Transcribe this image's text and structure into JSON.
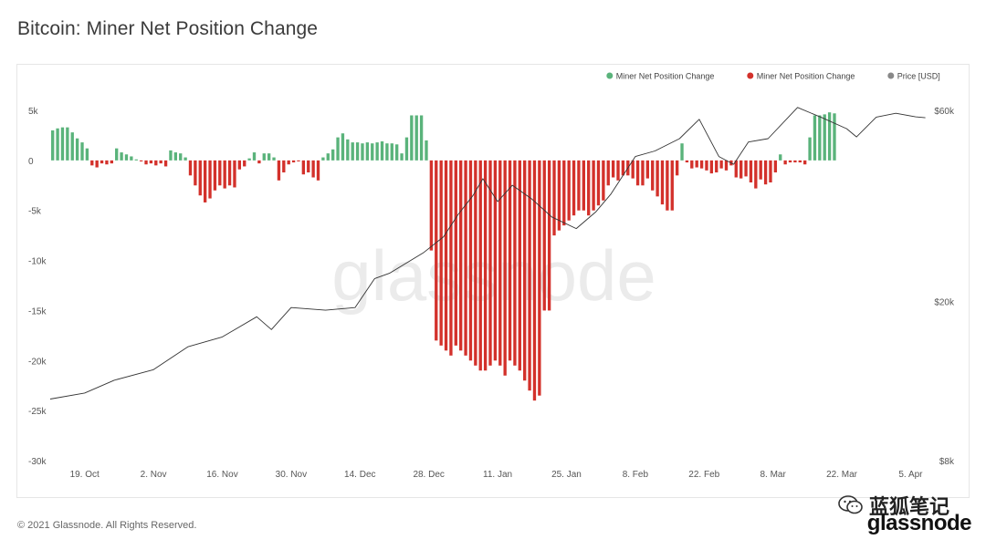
{
  "header": {
    "title": "Bitcoin: Miner Net Position Change"
  },
  "footer": {
    "copyright": "© 2021 Glassnode. All Rights Reserved."
  },
  "watermark": {
    "text": "glassnode"
  },
  "brand": {
    "logo_text": "glassnode",
    "wechat_text": "蓝狐笔记"
  },
  "colors": {
    "positive": "#5ab37b",
    "negative": "#d3312b",
    "price": "#333333",
    "watermark": "#ebebeb"
  },
  "chart_data": {
    "type": "bar",
    "legend": {
      "placement": "top-right",
      "items": [
        {
          "label": "Miner Net Position Change",
          "color": "#5ab37b"
        },
        {
          "label": "Miner Net Position Change",
          "color": "#d3312b"
        },
        {
          "label": "Price [USD]",
          "color": "#888888"
        }
      ]
    },
    "x_ticks": [
      "19. Oct",
      "2. Nov",
      "16. Nov",
      "30. Nov",
      "14. Dec",
      "28. Dec",
      "11. Jan",
      "25. Jan",
      "8. Feb",
      "22. Feb",
      "8. Mar",
      "22. Mar",
      "5. Apr"
    ],
    "y_left": {
      "ticks": [
        "5k",
        "0",
        "-5k",
        "-10k",
        "-15k",
        "-20k",
        "-25k",
        "-30k"
      ],
      "ylim": [
        -30000,
        5000
      ]
    },
    "y_right": {
      "ticks": [
        "$60k",
        "$20k",
        "$8k"
      ],
      "scale": "log",
      "ylim": [
        8000,
        60000
      ]
    },
    "grid": false,
    "x_range": [
      "2020-10-12",
      "2021-04-09"
    ],
    "series": [
      {
        "type": "bar",
        "start_date": "2020-10-12",
        "values": [
          3000,
          3200,
          3300,
          3300,
          2800,
          2200,
          1800,
          1200,
          -500,
          -700,
          -300,
          -400,
          -300,
          1200,
          800,
          600,
          400,
          100,
          -100,
          -400,
          -300,
          -500,
          -300,
          -600,
          1000,
          800,
          700,
          300,
          -1500,
          -2500,
          -3500,
          -4200,
          -3800,
          -3000,
          -2500,
          -2800,
          -2500,
          -2700,
          -900,
          -600,
          200,
          800,
          -300,
          700,
          700,
          300,
          -2000,
          -1200,
          -400,
          -200,
          -100,
          -1400,
          -1200,
          -1700,
          -2000,
          300,
          700,
          1100,
          2300,
          2700,
          2100,
          1800,
          1800,
          1700,
          1800,
          1700,
          1800,
          1900,
          1700,
          1700,
          1600,
          700,
          2300,
          4500,
          4500,
          4500,
          2000,
          -9000,
          -18000,
          -18500,
          -19000,
          -19500,
          -18500,
          -19000,
          -19500,
          -20000,
          -20500,
          -21000,
          -21000,
          -20500,
          -20000,
          -20500,
          -21500,
          -20000,
          -20500,
          -21000,
          -22000,
          -23000,
          -24000,
          -23500,
          -15000,
          -15000,
          -7500,
          -7000,
          -6500,
          -6000,
          -5500,
          -5000,
          -5000,
          -5500,
          -5000,
          -4500,
          -4000,
          -2500,
          -1700,
          -2000,
          -1500,
          -1500,
          -1800,
          -2500,
          -2500,
          -1800,
          -3000,
          -3600,
          -4400,
          -5000,
          -5000,
          -1500,
          1700,
          -200,
          -800,
          -700,
          -800,
          -1000,
          -1300,
          -1200,
          -800,
          -1000,
          -500,
          -1700,
          -1800,
          -1600,
          -2200,
          -2800,
          -1900,
          -2400,
          -2200,
          -1200,
          600,
          -400,
          -200,
          -200,
          -200,
          -400,
          2300,
          4500,
          4500,
          4600,
          4800,
          4700
        ]
      },
      {
        "type": "line",
        "name": "Price [USD]",
        "points": [
          [
            "2020-10-12",
            11400
          ],
          [
            "2020-10-19",
            11800
          ],
          [
            "2020-10-25",
            12700
          ],
          [
            "2020-11-02",
            13500
          ],
          [
            "2020-11-09",
            15400
          ],
          [
            "2020-11-16",
            16300
          ],
          [
            "2020-11-23",
            18300
          ],
          [
            "2020-11-26",
            17000
          ],
          [
            "2020-11-30",
            19300
          ],
          [
            "2020-12-07",
            19000
          ],
          [
            "2020-12-13",
            19300
          ],
          [
            "2020-12-17",
            22800
          ],
          [
            "2020-12-20",
            23500
          ],
          [
            "2020-12-27",
            26500
          ],
          [
            "2020-12-31",
            29000
          ],
          [
            "2021-01-03",
            33000
          ],
          [
            "2021-01-06",
            36800
          ],
          [
            "2021-01-08",
            40500
          ],
          [
            "2021-01-11",
            35500
          ],
          [
            "2021-01-14",
            39000
          ],
          [
            "2021-01-18",
            36000
          ],
          [
            "2021-01-22",
            32500
          ],
          [
            "2021-01-27",
            30400
          ],
          [
            "2021-01-31",
            33500
          ],
          [
            "2021-02-03",
            37000
          ],
          [
            "2021-02-08",
            46000
          ],
          [
            "2021-02-12",
            47500
          ],
          [
            "2021-02-17",
            51000
          ],
          [
            "2021-02-21",
            57000
          ],
          [
            "2021-02-25",
            46000
          ],
          [
            "2021-02-28",
            44000
          ],
          [
            "2021-03-03",
            50000
          ],
          [
            "2021-03-07",
            51000
          ],
          [
            "2021-03-13",
            61000
          ],
          [
            "2021-03-18",
            57500
          ],
          [
            "2021-03-23",
            54000
          ],
          [
            "2021-03-25",
            51500
          ],
          [
            "2021-03-29",
            57700
          ],
          [
            "2021-04-02",
            59000
          ],
          [
            "2021-04-06",
            57800
          ],
          [
            "2021-04-08",
            57500
          ]
        ]
      }
    ]
  }
}
